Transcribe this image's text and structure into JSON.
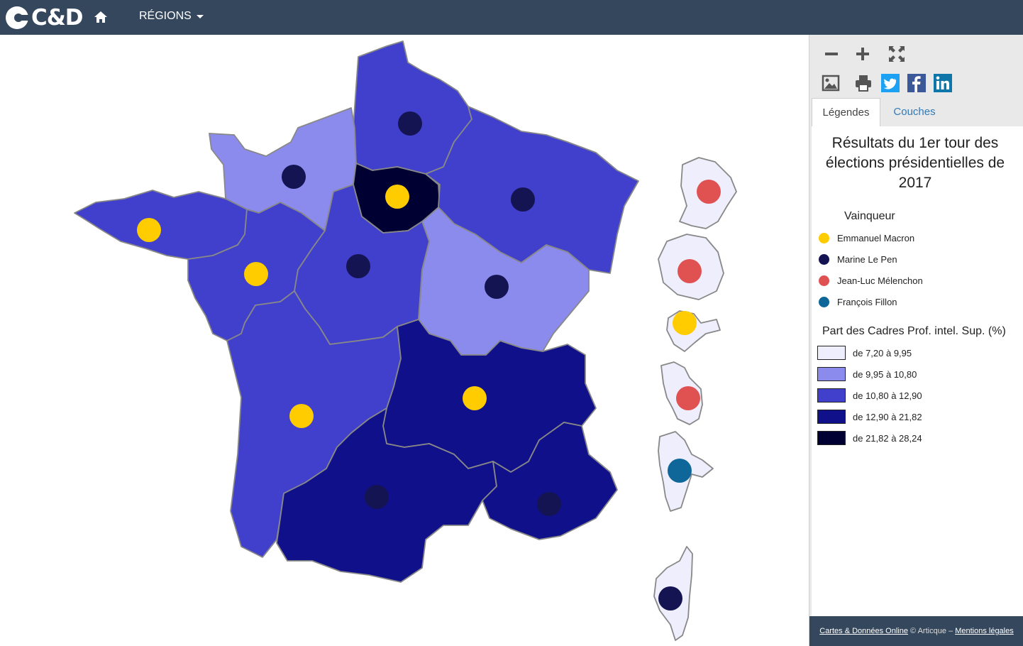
{
  "header": {
    "logo_text": "C&D",
    "regions_label": "RÉGIONS"
  },
  "toolbar": {
    "icons": [
      "zoom-out-icon",
      "zoom-in-icon",
      "fullscreen-icon",
      "image-export-icon",
      "print-icon",
      "twitter-icon",
      "facebook-icon",
      "linkedin-icon"
    ]
  },
  "tabs": [
    {
      "label": "Légendes",
      "active": true
    },
    {
      "label": "Couches",
      "active": false
    }
  ],
  "legend": {
    "title_lines": [
      "Résultats du 1er tour des",
      "élections présidentielles de",
      "2017"
    ],
    "winner_title": "Vainqueur",
    "winners": [
      {
        "name": "Emmanuel Macron",
        "color": "#ffcc00"
      },
      {
        "name": "Marine Le Pen",
        "color": "#141452"
      },
      {
        "name": "Jean-Luc Mélenchon",
        "color": "#e05252"
      },
      {
        "name": "François Fillon",
        "color": "#0e6699"
      }
    ],
    "choropleth_title": "Part des Cadres Prof. intel. Sup. (%)",
    "classes": [
      {
        "label": "de 7,20 à 9,95",
        "color": "#eeeefc"
      },
      {
        "label": "de 9,95 à 10,80",
        "color": "#8b8bed"
      },
      {
        "label": "de 10,80 à 12,90",
        "color": "#4040cc"
      },
      {
        "label": "de 12,90 à 21,82",
        "color": "#10108a"
      },
      {
        "label": "de 21,82 à 28,24",
        "color": "#000033"
      }
    ]
  },
  "map": {
    "regions": [
      {
        "id": "hauts-de-france",
        "winner": "Marine Le Pen",
        "class": 2
      },
      {
        "id": "normandie",
        "winner": "Marine Le Pen",
        "class": 1
      },
      {
        "id": "ile-de-france",
        "winner": "Emmanuel Macron",
        "class": 4
      },
      {
        "id": "grand-est",
        "winner": "Marine Le Pen",
        "class": 2
      },
      {
        "id": "bretagne",
        "winner": "Emmanuel Macron",
        "class": 2
      },
      {
        "id": "pays-de-la-loire",
        "winner": "Emmanuel Macron",
        "class": 2
      },
      {
        "id": "centre-val-de-loire",
        "winner": "Marine Le Pen",
        "class": 2
      },
      {
        "id": "bourgogne-franche-comte",
        "winner": "Marine Le Pen",
        "class": 1
      },
      {
        "id": "nouvelle-aquitaine",
        "winner": "Emmanuel Macron",
        "class": 2
      },
      {
        "id": "auvergne-rhone-alpes",
        "winner": "Emmanuel Macron",
        "class": 3
      },
      {
        "id": "occitanie",
        "winner": "Marine Le Pen",
        "class": 3
      },
      {
        "id": "provence-alpes-cote-d-azur",
        "winner": "Marine Le Pen",
        "class": 3
      },
      {
        "id": "guyane",
        "winner": "Jean-Luc Mélenchon",
        "class": 0
      },
      {
        "id": "la-reunion",
        "winner": "Jean-Luc Mélenchon",
        "class": 0
      },
      {
        "id": "guadeloupe",
        "winner": "Emmanuel Macron",
        "class": 0
      },
      {
        "id": "martinique",
        "winner": "Jean-Luc Mélenchon",
        "class": 0
      },
      {
        "id": "mayotte",
        "winner": "François Fillon",
        "class": 0
      },
      {
        "id": "corse",
        "winner": "Marine Le Pen",
        "class": 0
      }
    ]
  },
  "footer": {
    "link1": "Cartes & Données Online",
    "middle": " © Articque – ",
    "link2": "Mentions légales"
  }
}
